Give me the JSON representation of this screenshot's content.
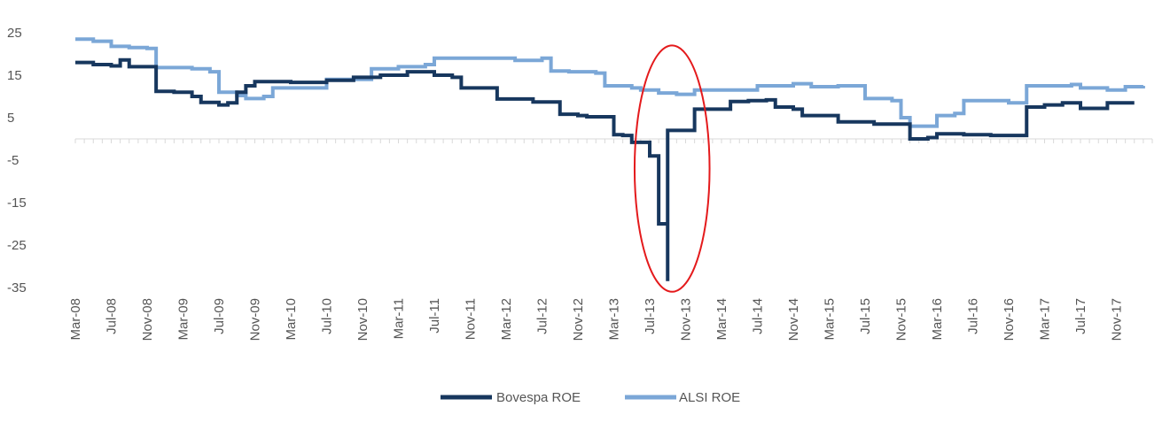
{
  "chart_data": {
    "type": "line",
    "title": "",
    "xlabel": "",
    "ylabel": "",
    "ylim": [
      -35,
      25
    ],
    "yticks": [
      25,
      15,
      5,
      -5,
      -15,
      -25,
      -35
    ],
    "ytick_labels": [
      "25",
      "15",
      "5",
      "-5",
      "-15",
      "-25",
      "-35"
    ],
    "x_start": "Mar-08",
    "x_end": "Mar-18",
    "xtick_labels": [
      "Mar-08",
      "Jul-08",
      "Nov-08",
      "Mar-09",
      "Jul-09",
      "Nov-09",
      "Mar-10",
      "Jul-10",
      "Nov-10",
      "Mar-11",
      "Jul-11",
      "Nov-11",
      "Mar-12",
      "Jul-12",
      "Nov-12",
      "Mar-13",
      "Jul-13",
      "Nov-13",
      "Mar-14",
      "Jul-14",
      "Nov-14",
      "Mar-15",
      "Jul-15",
      "Nov-15",
      "Mar-16",
      "Jul-16",
      "Nov-16",
      "Mar-17",
      "Jul-17",
      "Nov-17"
    ],
    "grid": false,
    "legend_position": "bottom",
    "series": [
      {
        "name": "Bovespa ROE",
        "color": "#17375e",
        "points": [
          [
            "Mar-08",
            18
          ],
          [
            "May-08",
            17.5
          ],
          [
            "Jul-08",
            17.2
          ],
          [
            "Aug-08",
            18.6
          ],
          [
            "Sep-08",
            17
          ],
          [
            "Nov-08",
            17
          ],
          [
            "Dec-08",
            11.2
          ],
          [
            "Feb-09",
            11
          ],
          [
            "Apr-09",
            10
          ],
          [
            "May-09",
            8.6
          ],
          [
            "Jul-09",
            8
          ],
          [
            "Aug-09",
            8.5
          ],
          [
            "Sep-09",
            11
          ],
          [
            "Oct-09",
            12.5
          ],
          [
            "Nov-09",
            13.5
          ],
          [
            "Jan-10",
            13.5
          ],
          [
            "Mar-10",
            13.3
          ],
          [
            "Jul-10",
            13.8
          ],
          [
            "Oct-10",
            14.5
          ],
          [
            "Jan-11",
            15
          ],
          [
            "Apr-11",
            15.8
          ],
          [
            "Jul-11",
            15
          ],
          [
            "Sep-11",
            14.5
          ],
          [
            "Oct-11",
            12
          ],
          [
            "Jan-12",
            12
          ],
          [
            "Feb-12",
            9.4
          ],
          [
            "Jun-12",
            8.7
          ],
          [
            "Aug-12",
            8.7
          ],
          [
            "Sep-12",
            5.8
          ],
          [
            "Nov-12",
            5.5
          ],
          [
            "Dec-12",
            5.2
          ],
          [
            "Mar-13",
            1
          ],
          [
            "Apr-13",
            0.8
          ],
          [
            "May-13",
            -0.8
          ],
          [
            "Jul-13",
            -4
          ],
          [
            "Aug-13",
            -5
          ],
          [
            "Aug-13",
            -20
          ],
          [
            "Sep-13",
            -33.5
          ],
          [
            "Sep-13",
            2
          ],
          [
            "Nov-13",
            2
          ],
          [
            "Dec-13",
            7
          ],
          [
            "Feb-14",
            7
          ],
          [
            "Apr-14",
            8.8
          ],
          [
            "Jun-14",
            9
          ],
          [
            "Aug-14",
            9.2
          ],
          [
            "Sep-14",
            7.5
          ],
          [
            "Nov-14",
            7
          ],
          [
            "Dec-14",
            5.5
          ],
          [
            "Feb-15",
            5.5
          ],
          [
            "Apr-15",
            4
          ],
          [
            "Aug-15",
            3.5
          ],
          [
            "Oct-15",
            3.5
          ],
          [
            "Dec-15",
            0
          ],
          [
            "Feb-16",
            0.3
          ],
          [
            "Mar-16",
            1.2
          ],
          [
            "Jun-16",
            1
          ],
          [
            "Sep-16",
            0.8
          ],
          [
            "Dec-16",
            0.8
          ],
          [
            "Jan-17",
            7.5
          ],
          [
            "Mar-17",
            8
          ],
          [
            "May-17",
            8.5
          ],
          [
            "Jul-17",
            7.2
          ],
          [
            "Oct-17",
            8.5
          ],
          [
            "Jan-18",
            8.5
          ]
        ]
      },
      {
        "name": "ALSI ROE",
        "color": "#7ba7d7",
        "points": [
          [
            "Mar-08",
            23.5
          ],
          [
            "May-08",
            23
          ],
          [
            "Jul-08",
            21.8
          ],
          [
            "Sep-08",
            21.5
          ],
          [
            "Nov-08",
            21.3
          ],
          [
            "Dec-08",
            16.8
          ],
          [
            "Apr-09",
            16.5
          ],
          [
            "Jun-09",
            15.8
          ],
          [
            "Jul-09",
            11
          ],
          [
            "Sep-09",
            10.2
          ],
          [
            "Oct-09",
            9.5
          ],
          [
            "Dec-09",
            10
          ],
          [
            "Jan-10",
            12
          ],
          [
            "Mar-10",
            12
          ],
          [
            "Jun-10",
            12
          ],
          [
            "Jul-10",
            14
          ],
          [
            "Oct-10",
            14
          ],
          [
            "Nov-10",
            14
          ],
          [
            "Dec-10",
            16.5
          ],
          [
            "Mar-11",
            17
          ],
          [
            "Jun-11",
            17.5
          ],
          [
            "Jul-11",
            19
          ],
          [
            "Jan-12",
            19
          ],
          [
            "Apr-12",
            18.5
          ],
          [
            "Jul-12",
            19
          ],
          [
            "Aug-12",
            16
          ],
          [
            "Oct-12",
            15.8
          ],
          [
            "Jan-13",
            15.5
          ],
          [
            "Feb-13",
            12.5
          ],
          [
            "May-13",
            12
          ],
          [
            "Jun-13",
            11.5
          ],
          [
            "Aug-13",
            10.8
          ],
          [
            "Oct-13",
            10.5
          ],
          [
            "Nov-13",
            10.5
          ],
          [
            "Dec-13",
            11.5
          ],
          [
            "Jun-14",
            11.5
          ],
          [
            "Jul-14",
            12.5
          ],
          [
            "Nov-14",
            13
          ],
          [
            "Jan-15",
            12.3
          ],
          [
            "Apr-15",
            12.5
          ],
          [
            "Jun-15",
            12.5
          ],
          [
            "Jul-15",
            9.5
          ],
          [
            "Oct-15",
            9
          ],
          [
            "Nov-15",
            5
          ],
          [
            "Dec-15",
            3
          ],
          [
            "Feb-16",
            3
          ],
          [
            "Mar-16",
            5.5
          ],
          [
            "May-16",
            6
          ],
          [
            "Jun-16",
            9
          ],
          [
            "Aug-16",
            9
          ],
          [
            "Nov-16",
            8.5
          ],
          [
            "Jan-17",
            12.5
          ],
          [
            "Mar-17",
            12.5
          ],
          [
            "Jun-17",
            12.8
          ],
          [
            "Jul-17",
            12
          ],
          [
            "Oct-17",
            11.5
          ],
          [
            "Dec-17",
            12.3
          ],
          [
            "Feb-18",
            12.5
          ]
        ]
      }
    ],
    "highlight": {
      "shape": "ellipse",
      "color": "#e41a1c",
      "center_x": "Sep-13",
      "center_y": -5,
      "radius_months": 2.4,
      "y_top": 22,
      "y_bottom": -36
    }
  }
}
